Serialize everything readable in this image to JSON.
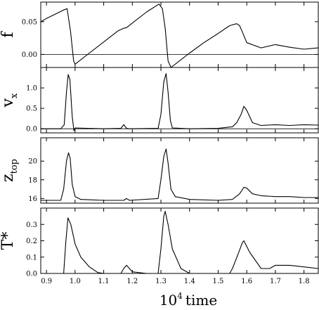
{
  "chart_data": [
    {
      "type": "line",
      "ylabel": "f",
      "ylim": [
        -0.02,
        0.08
      ],
      "yticks": [
        0.0,
        0.05
      ],
      "ytick_labels": [
        "0.00",
        "0.05"
      ],
      "reference_line": 0,
      "x": [
        0.88,
        0.9,
        0.96,
        0.972,
        0.984,
        0.995,
        1.0,
        1.05,
        1.1,
        1.15,
        1.17,
        1.18,
        1.2,
        1.25,
        1.293,
        1.305,
        1.315,
        1.325,
        1.335,
        1.4,
        1.45,
        1.5,
        1.54,
        1.565,
        1.575,
        1.585,
        1.6,
        1.65,
        1.7,
        1.75,
        1.8,
        1.85
      ],
      "y": [
        0.05,
        0.055,
        0.068,
        0.07,
        0.035,
        -0.01,
        -0.015,
        0.002,
        0.019,
        0.036,
        0.04,
        0.041,
        0.048,
        0.065,
        0.077,
        0.07,
        0.04,
        -0.01,
        -0.02,
        0.002,
        0.018,
        0.032,
        0.044,
        0.047,
        0.044,
        0.034,
        0.018,
        0.01,
        0.015,
        0.011,
        0.008,
        0.01
      ]
    },
    {
      "type": "line",
      "ylabel": "v",
      "ylabel_sub": "x",
      "ylim": [
        -0.1,
        1.5
      ],
      "yticks": [
        0.0,
        0.5,
        1.0
      ],
      "ytick_labels": [
        "0.0",
        "0.5",
        "1.0"
      ],
      "reference_line": 0,
      "x": [
        0.88,
        0.95,
        0.962,
        0.97,
        0.976,
        0.982,
        0.99,
        0.996,
        1.0,
        1.1,
        1.16,
        1.17,
        1.18,
        1.19,
        1.29,
        1.3,
        1.31,
        1.318,
        1.325,
        1.333,
        1.34,
        1.4,
        1.5,
        1.55,
        1.565,
        1.58,
        1.59,
        1.6,
        1.62,
        1.65,
        1.7,
        1.75,
        1.8,
        1.85
      ],
      "y": [
        0.0,
        0.0,
        0.1,
        0.9,
        1.33,
        1.2,
        0.3,
        -0.05,
        0.02,
        0.0,
        0.01,
        0.1,
        0.01,
        0.0,
        0.01,
        0.35,
        1.15,
        1.35,
        0.9,
        0.2,
        0.02,
        0.0,
        0.01,
        0.05,
        0.15,
        0.35,
        0.55,
        0.45,
        0.15,
        0.08,
        0.1,
        0.08,
        0.1,
        0.09
      ]
    },
    {
      "type": "line",
      "ylabel": "z",
      "ylabel_sub": "top",
      "ylim": [
        15.5,
        22.5
      ],
      "yticks": [
        16,
        18,
        20
      ],
      "ytick_labels": [
        "16",
        "18",
        "20"
      ],
      "x": [
        0.88,
        0.95,
        0.96,
        0.97,
        0.977,
        0.983,
        0.99,
        1.0,
        1.02,
        1.1,
        1.17,
        1.18,
        1.19,
        1.29,
        1.3,
        1.31,
        1.318,
        1.325,
        1.335,
        1.35,
        1.4,
        1.5,
        1.55,
        1.575,
        1.59,
        1.6,
        1.62,
        1.65,
        1.7,
        1.75,
        1.8,
        1.85
      ],
      "y": [
        15.8,
        15.8,
        17.0,
        20.0,
        20.9,
        20.3,
        17.5,
        16.2,
        15.9,
        15.8,
        15.8,
        16.0,
        15.8,
        16.0,
        18.0,
        20.5,
        21.3,
        19.8,
        17.0,
        16.2,
        15.9,
        15.8,
        15.9,
        16.5,
        17.2,
        17.1,
        16.5,
        16.3,
        16.2,
        16.2,
        16.1,
        16.1
      ]
    },
    {
      "type": "line",
      "ylabel": "T*",
      "ylim": [
        0.0,
        0.4
      ],
      "yticks": [
        0.0,
        0.1,
        0.2,
        0.3
      ],
      "ytick_labels": [
        "0.0",
        "0.1",
        "0.2",
        "0.3"
      ],
      "xlabel": "time",
      "xlabel_prefix": "10",
      "xlabel_sup": "4",
      "xlim": [
        0.88,
        1.85
      ],
      "xticks": [
        0.9,
        1.0,
        1.1,
        1.2,
        1.3,
        1.4,
        1.5,
        1.6,
        1.7,
        1.8
      ],
      "xtick_labels": [
        "0.9",
        "1.0",
        "1.1",
        "1.2",
        "1.3",
        "1.4",
        "1.5",
        "1.6",
        "1.7",
        "1.8"
      ],
      "x": [
        0.88,
        0.95,
        0.96,
        0.968,
        0.975,
        0.985,
        1.0,
        1.02,
        1.05,
        1.08,
        1.1,
        1.16,
        1.17,
        1.18,
        1.2,
        1.25,
        1.29,
        1.3,
        1.31,
        1.315,
        1.325,
        1.34,
        1.37,
        1.4,
        1.5,
        1.54,
        1.55,
        1.57,
        1.585,
        1.59,
        1.61,
        1.65,
        1.68,
        1.7,
        1.75,
        1.8,
        1.85
      ],
      "y": [
        0.0,
        0.0,
        0.0,
        0.2,
        0.34,
        0.3,
        0.18,
        0.1,
        0.04,
        0.005,
        0.0,
        0.0,
        0.03,
        0.05,
        0.01,
        0.0,
        0.0,
        0.15,
        0.35,
        0.38,
        0.3,
        0.15,
        0.03,
        0.0,
        0.0,
        0.0,
        0.03,
        0.12,
        0.19,
        0.2,
        0.13,
        0.03,
        0.03,
        0.05,
        0.05,
        0.04,
        0.03
      ]
    }
  ]
}
